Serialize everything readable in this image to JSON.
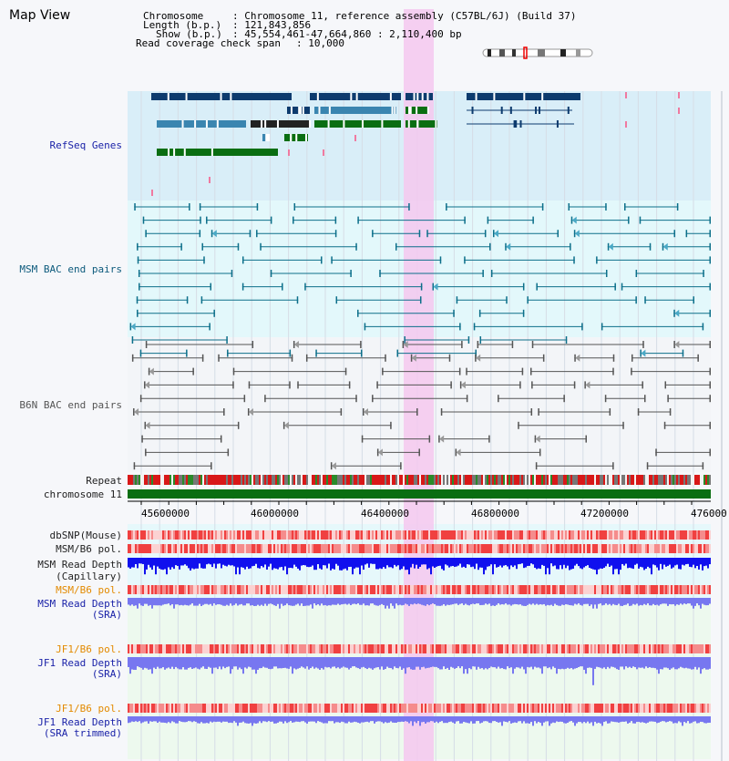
{
  "app": {
    "title": "Map View"
  },
  "header": {
    "chromosome_key": "Chromosome",
    "chromosome_value": ": Chromosome 11, reference assembly (C57BL/6J) (Build 37)",
    "length_key": "Length (b.p.)",
    "length_value": ": 121,843,856",
    "show_key": "Show (b.p.)",
    "show_value": ": 45,554,461-47,664,860 : 2,110,400 bp",
    "coverage_key": "Read coverage check span",
    "coverage_value": ": 10,000"
  },
  "tracks": {
    "refseq": "RefSeq Genes",
    "msm_bac": "MSM BAC end pairs",
    "b6n_bac": "B6N BAC end pairs",
    "repeat": "Repeat",
    "chromosome": "chromosome 11",
    "dbsnp": "dbSNP(Mouse)",
    "msm_b6_pol_1": "MSM/B6 pol.",
    "msm_read_depth_cap_1": "MSM Read Depth",
    "msm_read_depth_cap_2": "(Capillary)",
    "msm_b6_pol_2": "MSM/B6 pol.",
    "msm_read_depth_sra_1": "MSM Read Depth",
    "msm_read_depth_sra_2": "(SRA)",
    "jf1_b6_pol_1": "JF1/B6 pol.",
    "jf1_read_depth_sra_1": "JF1 Read Depth",
    "jf1_read_depth_sra_2": "(SRA)",
    "jf1_b6_pol_2": "JF1/B6 pol.",
    "jf1_read_depth_trim_1": "JF1 Read Depth",
    "jf1_read_depth_trim_2": "(SRA trimmed)"
  },
  "axis": {
    "ticks": [
      "45600000",
      "46000000",
      "46400000",
      "46800000",
      "47200000",
      "476000"
    ]
  },
  "colors": {
    "refseq_bg": "#d9eef8",
    "msm_bg": "#e3f8fb",
    "highlight": "#f5c8ee",
    "gene_dark": "#0d3b6e",
    "gene_mid": "#3a85b0",
    "gene_green": "#0a6e12",
    "chromosome_green": "#0a6e12",
    "depth_dark": "#1010ee",
    "depth_light": "#7777f0"
  }
}
